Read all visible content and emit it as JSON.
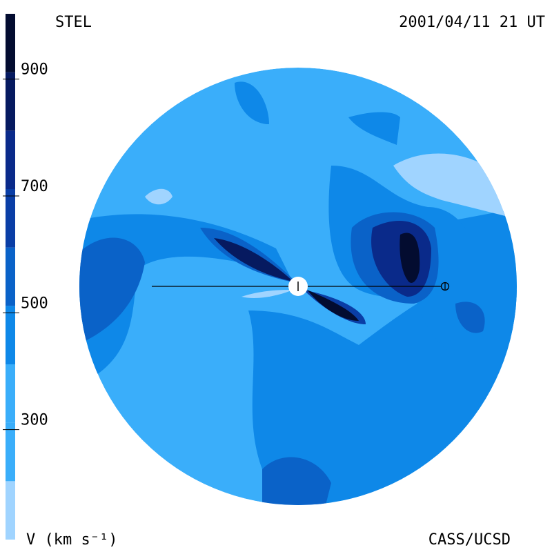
{
  "header": {
    "left": "STEL",
    "right": "2001/04/11 21 UT"
  },
  "footer": {
    "left": "V (km s⁻¹)",
    "right": "CASS/UCSD"
  },
  "colorbar": {
    "lim": [
      100,
      1000
    ],
    "ticks": [
      300,
      500,
      700,
      900
    ],
    "levels": [
      100,
      200,
      300,
      400,
      500,
      600,
      700,
      800,
      900,
      1000
    ],
    "colors": [
      "#a0d4ff",
      "#3aaefa",
      "#3aaefa",
      "#0e88e8",
      "#0a62c8",
      "#0a3ea6",
      "#0a2a8a",
      "#061a60",
      "#030c30"
    ]
  }
}
